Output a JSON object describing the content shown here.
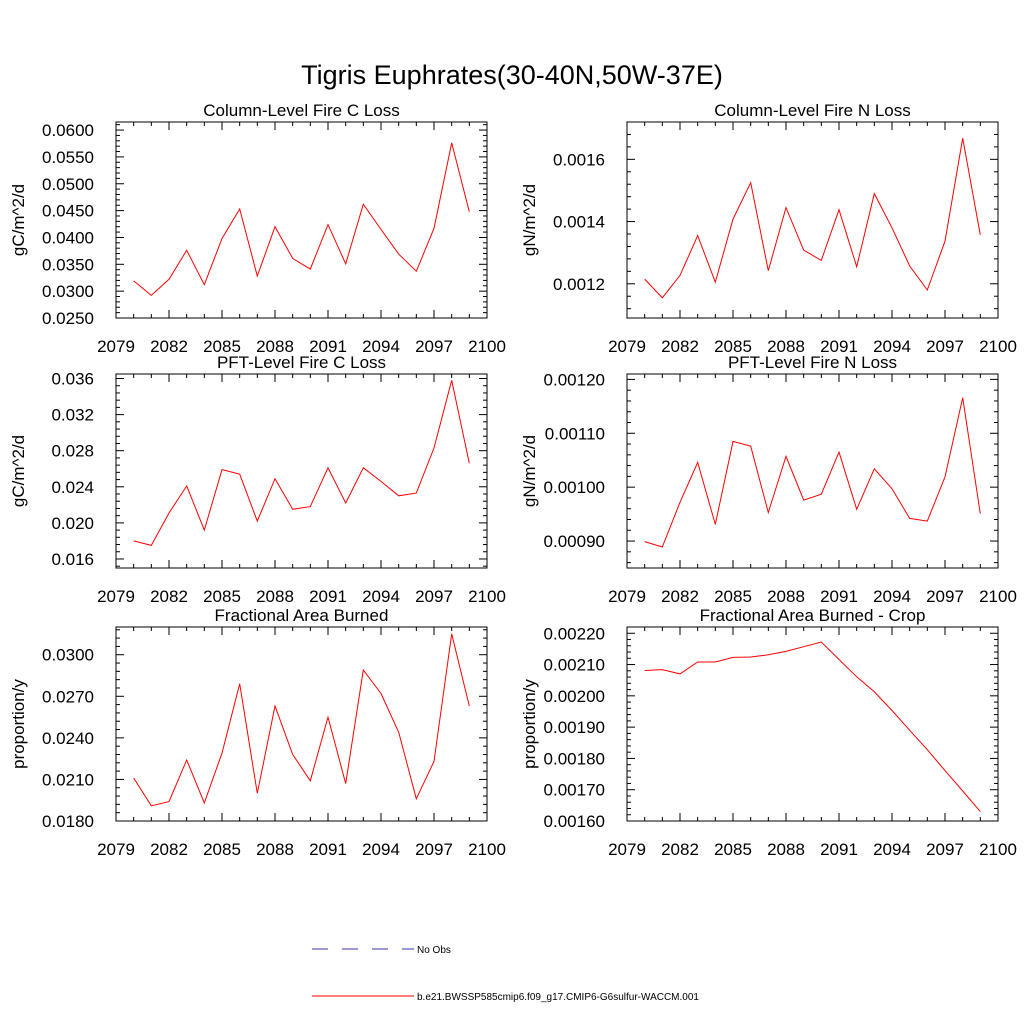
{
  "figure_title": "Tigris Euphrates(30-40N,50W-37E)",
  "colors": {
    "model_line": "#ff0000",
    "obs_line": "#3333aa",
    "axes": "#000000"
  },
  "legend": {
    "obs_label": "No Obs",
    "model_label": "b.e21.BWSSP585cmip6.f09_g17.CMIP6-G6sulfur-WACCM.001"
  },
  "chart_data": [
    {
      "type": "line",
      "title": "Column-Level Fire C Loss",
      "ylabel": "gC/m^2/d",
      "xlim": [
        2079,
        2100
      ],
      "ylim": [
        0.025,
        0.0615
      ],
      "x_ticks": [
        "2079",
        "2082",
        "2085",
        "2088",
        "2091",
        "2094",
        "2097",
        "2100"
      ],
      "y_ticks": [
        "0.0250",
        "0.0300",
        "0.0350",
        "0.0400",
        "0.0450",
        "0.0500",
        "0.0550",
        "0.0600"
      ],
      "series": [
        {
          "x": [
            2080,
            2081,
            2082,
            2083,
            2084,
            2085,
            2086,
            2087,
            2088,
            2089,
            2090,
            2091,
            2092,
            2093,
            2094,
            2095,
            2096,
            2097,
            2098,
            2099
          ],
          "values": [
            0.0319,
            0.0292,
            0.0322,
            0.0376,
            0.0312,
            0.0398,
            0.0453,
            0.0328,
            0.042,
            0.0361,
            0.0341,
            0.0424,
            0.0351,
            0.0462,
            0.0415,
            0.0369,
            0.0337,
            0.0417,
            0.0576,
            0.0448
          ]
        }
      ]
    },
    {
      "type": "line",
      "title": "Column-Level Fire N Loss",
      "ylabel": "gN/m^2/d",
      "xlim": [
        2079,
        2100
      ],
      "ylim": [
        0.00109,
        0.00172
      ],
      "x_ticks": [
        "2079",
        "2082",
        "2085",
        "2088",
        "2091",
        "2094",
        "2097",
        "2100"
      ],
      "y_ticks": [
        "0.0012",
        "0.0014",
        "0.0016"
      ],
      "series": [
        {
          "x": [
            2080,
            2081,
            2082,
            2083,
            2084,
            2085,
            2086,
            2087,
            2088,
            2089,
            2090,
            2091,
            2092,
            2093,
            2094,
            2095,
            2096,
            2097,
            2098,
            2099
          ],
          "values": [
            0.001215,
            0.001155,
            0.001227,
            0.001355,
            0.001205,
            0.001408,
            0.001525,
            0.001242,
            0.001445,
            0.001308,
            0.001275,
            0.001438,
            0.001255,
            0.00149,
            0.00138,
            0.001257,
            0.00118,
            0.001337,
            0.001668,
            0.001357
          ]
        }
      ]
    },
    {
      "type": "line",
      "title": "PFT-Level Fire C Loss",
      "ylabel": "gC/m^2/d",
      "xlim": [
        2079,
        2100
      ],
      "ylim": [
        0.015,
        0.0365
      ],
      "x_ticks": [
        "2079",
        "2082",
        "2085",
        "2088",
        "2091",
        "2094",
        "2097",
        "2100"
      ],
      "y_ticks": [
        "0.016",
        "0.020",
        "0.024",
        "0.028",
        "0.032",
        "0.036"
      ],
      "series": [
        {
          "x": [
            2080,
            2081,
            2082,
            2083,
            2084,
            2085,
            2086,
            2087,
            2088,
            2089,
            2090,
            2091,
            2092,
            2093,
            2094,
            2095,
            2096,
            2097,
            2098,
            2099
          ],
          "values": [
            0.018,
            0.0175,
            0.0211,
            0.0241,
            0.0192,
            0.0259,
            0.0254,
            0.0202,
            0.0249,
            0.0215,
            0.0218,
            0.0261,
            0.0222,
            0.0261,
            0.0246,
            0.023,
            0.0233,
            0.0283,
            0.0358,
            0.0266
          ]
        }
      ]
    },
    {
      "type": "line",
      "title": "PFT-Level Fire N Loss",
      "ylabel": "gN/m^2/d",
      "xlim": [
        2079,
        2100
      ],
      "ylim": [
        0.00085,
        0.00121
      ],
      "x_ticks": [
        "2079",
        "2082",
        "2085",
        "2088",
        "2091",
        "2094",
        "2097",
        "2100"
      ],
      "y_ticks": [
        "0.00090",
        "0.00100",
        "0.00110",
        "0.00120"
      ],
      "series": [
        {
          "x": [
            2080,
            2081,
            2082,
            2083,
            2084,
            2085,
            2086,
            2087,
            2088,
            2089,
            2090,
            2091,
            2092,
            2093,
            2094,
            2095,
            2096,
            2097,
            2098,
            2099
          ],
          "values": [
            0.000899,
            0.000889,
            0.000972,
            0.001046,
            0.000931,
            0.001085,
            0.001076,
            0.000953,
            0.001057,
            0.000976,
            0.000987,
            0.001065,
            0.000959,
            0.001034,
            0.000997,
            0.000942,
            0.000937,
            0.001019,
            0.001166,
            0.000951
          ]
        }
      ]
    },
    {
      "type": "line",
      "title": "Fractional Area Burned",
      "ylabel": "proportion/y",
      "xlim": [
        2079,
        2100
      ],
      "ylim": [
        0.018,
        0.032
      ],
      "x_ticks": [
        "2079",
        "2082",
        "2085",
        "2088",
        "2091",
        "2094",
        "2097",
        "2100"
      ],
      "y_ticks": [
        "0.0180",
        "0.0210",
        "0.0240",
        "0.0270",
        "0.0300"
      ],
      "series": [
        {
          "x": [
            2080,
            2081,
            2082,
            2083,
            2084,
            2085,
            2086,
            2087,
            2088,
            2089,
            2090,
            2091,
            2092,
            2093,
            2094,
            2095,
            2096,
            2097,
            2098,
            2099
          ],
          "values": [
            0.0211,
            0.0191,
            0.0194,
            0.0224,
            0.0193,
            0.0229,
            0.0279,
            0.02,
            0.0263,
            0.0228,
            0.0209,
            0.0255,
            0.0207,
            0.0289,
            0.0272,
            0.0244,
            0.0196,
            0.0223,
            0.0315,
            0.0263
          ]
        }
      ]
    },
    {
      "type": "line",
      "title": "Fractional Area Burned - Crop",
      "ylabel": "proportion/y",
      "xlim": [
        2079,
        2100
      ],
      "ylim": [
        0.0016,
        0.00222
      ],
      "x_ticks": [
        "2079",
        "2082",
        "2085",
        "2088",
        "2091",
        "2094",
        "2097",
        "2100"
      ],
      "y_ticks": [
        "0.00160",
        "0.00170",
        "0.00180",
        "0.00190",
        "0.00200",
        "0.00210",
        "0.00220"
      ],
      "series": [
        {
          "x": [
            2080,
            2081,
            2082,
            2083,
            2084,
            2085,
            2086,
            2087,
            2088,
            2089,
            2090,
            2091,
            2092,
            2093,
            2094,
            2095,
            2096,
            2097,
            2098,
            2099
          ],
          "values": [
            0.002081,
            0.002084,
            0.00207,
            0.002108,
            0.002108,
            0.002123,
            0.002124,
            0.002131,
            0.002142,
            0.002157,
            0.002172,
            0.002116,
            0.002061,
            0.002013,
            0.001953,
            0.00189,
            0.001828,
            0.001761,
            0.001696,
            0.00163
          ]
        }
      ]
    }
  ]
}
